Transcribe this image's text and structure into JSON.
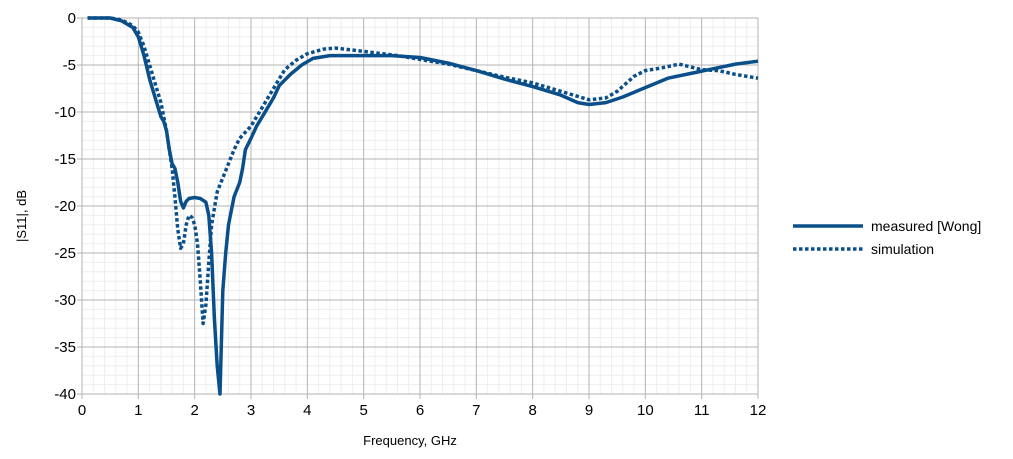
{
  "chart_data": {
    "type": "line",
    "title": "",
    "xlabel": "Frequency, GHz",
    "ylabel": "|S11|, dB",
    "xlim": [
      0,
      12
    ],
    "ylim": [
      -40,
      0
    ],
    "x_ticks": [
      0,
      1,
      2,
      3,
      4,
      5,
      6,
      7,
      8,
      9,
      10,
      11,
      12
    ],
    "y_ticks": [
      0,
      -5,
      -10,
      -15,
      -20,
      -25,
      -30,
      -35,
      -40
    ],
    "grid": true,
    "legend_position": "right",
    "series": [
      {
        "name": "measured [Wong]",
        "color": "#0b4f8a",
        "style": "solid",
        "points": [
          [
            0.1,
            0.0
          ],
          [
            0.5,
            0.0
          ],
          [
            0.7,
            -0.3
          ],
          [
            0.9,
            -1.0
          ],
          [
            1.0,
            -2.0
          ],
          [
            1.1,
            -4.0
          ],
          [
            1.2,
            -6.5
          ],
          [
            1.3,
            -8.5
          ],
          [
            1.4,
            -10.5
          ],
          [
            1.45,
            -11.0
          ],
          [
            1.5,
            -12.0
          ],
          [
            1.55,
            -14.0
          ],
          [
            1.6,
            -15.5
          ],
          [
            1.65,
            -16.0
          ],
          [
            1.7,
            -17.5
          ],
          [
            1.75,
            -19.5
          ],
          [
            1.8,
            -20.2
          ],
          [
            1.85,
            -19.5
          ],
          [
            1.9,
            -19.2
          ],
          [
            2.0,
            -19.1
          ],
          [
            2.1,
            -19.2
          ],
          [
            2.2,
            -19.6
          ],
          [
            2.25,
            -21.0
          ],
          [
            2.3,
            -25.0
          ],
          [
            2.35,
            -32.0
          ],
          [
            2.4,
            -37.0
          ],
          [
            2.45,
            -40.0
          ],
          [
            2.5,
            -29.0
          ],
          [
            2.55,
            -25.0
          ],
          [
            2.6,
            -22.0
          ],
          [
            2.65,
            -20.5
          ],
          [
            2.7,
            -19.0
          ],
          [
            2.8,
            -17.5
          ],
          [
            2.85,
            -16.0
          ],
          [
            2.9,
            -14.0
          ],
          [
            3.0,
            -12.8
          ],
          [
            3.1,
            -11.5
          ],
          [
            3.2,
            -10.5
          ],
          [
            3.3,
            -9.5
          ],
          [
            3.4,
            -8.5
          ],
          [
            3.5,
            -7.2
          ],
          [
            3.7,
            -6.0
          ],
          [
            3.9,
            -5.0
          ],
          [
            4.1,
            -4.3
          ],
          [
            4.4,
            -4.0
          ],
          [
            5.0,
            -4.0
          ],
          [
            5.5,
            -4.0
          ],
          [
            6.0,
            -4.2
          ],
          [
            6.5,
            -4.8
          ],
          [
            7.0,
            -5.6
          ],
          [
            7.5,
            -6.5
          ],
          [
            8.0,
            -7.3
          ],
          [
            8.5,
            -8.2
          ],
          [
            8.8,
            -9.0
          ],
          [
            9.0,
            -9.2
          ],
          [
            9.3,
            -9.0
          ],
          [
            9.6,
            -8.4
          ],
          [
            10.0,
            -7.4
          ],
          [
            10.4,
            -6.4
          ],
          [
            10.8,
            -5.9
          ],
          [
            11.2,
            -5.4
          ],
          [
            11.6,
            -4.9
          ],
          [
            12.0,
            -4.6
          ]
        ]
      },
      {
        "name": "simulation",
        "color": "#0b4f8a",
        "style": "dotted",
        "points": [
          [
            0.1,
            0.0
          ],
          [
            0.5,
            0.0
          ],
          [
            0.7,
            -0.2
          ],
          [
            0.9,
            -0.8
          ],
          [
            1.0,
            -1.5
          ],
          [
            1.1,
            -3.0
          ],
          [
            1.2,
            -5.0
          ],
          [
            1.3,
            -7.0
          ],
          [
            1.4,
            -9.0
          ],
          [
            1.5,
            -12.0
          ],
          [
            1.55,
            -14.0
          ],
          [
            1.6,
            -16.0
          ],
          [
            1.65,
            -19.0
          ],
          [
            1.7,
            -22.5
          ],
          [
            1.75,
            -24.5
          ],
          [
            1.8,
            -24.0
          ],
          [
            1.85,
            -22.0
          ],
          [
            1.9,
            -21.0
          ],
          [
            1.95,
            -21.2
          ],
          [
            2.0,
            -22.0
          ],
          [
            2.05,
            -24.0
          ],
          [
            2.1,
            -28.0
          ],
          [
            2.15,
            -32.5
          ],
          [
            2.2,
            -30.5
          ],
          [
            2.25,
            -26.0
          ],
          [
            2.3,
            -22.0
          ],
          [
            2.4,
            -18.5
          ],
          [
            2.5,
            -17.0
          ],
          [
            2.6,
            -15.5
          ],
          [
            2.7,
            -14.0
          ],
          [
            2.8,
            -12.8
          ],
          [
            3.0,
            -11.5
          ],
          [
            3.2,
            -9.5
          ],
          [
            3.4,
            -7.5
          ],
          [
            3.6,
            -5.5
          ],
          [
            3.8,
            -4.5
          ],
          [
            4.0,
            -3.8
          ],
          [
            4.3,
            -3.3
          ],
          [
            4.5,
            -3.2
          ],
          [
            4.8,
            -3.4
          ],
          [
            5.2,
            -3.7
          ],
          [
            5.6,
            -4.0
          ],
          [
            6.0,
            -4.4
          ],
          [
            6.5,
            -4.9
          ],
          [
            7.0,
            -5.6
          ],
          [
            7.5,
            -6.3
          ],
          [
            8.0,
            -6.9
          ],
          [
            8.5,
            -7.8
          ],
          [
            9.0,
            -8.7
          ],
          [
            9.3,
            -8.5
          ],
          [
            9.5,
            -7.8
          ],
          [
            9.8,
            -6.2
          ],
          [
            10.0,
            -5.6
          ],
          [
            10.3,
            -5.3
          ],
          [
            10.6,
            -4.9
          ],
          [
            10.8,
            -5.2
          ],
          [
            11.0,
            -5.5
          ],
          [
            11.3,
            -5.6
          ],
          [
            11.6,
            -6.0
          ],
          [
            12.0,
            -6.4
          ]
        ]
      }
    ]
  }
}
